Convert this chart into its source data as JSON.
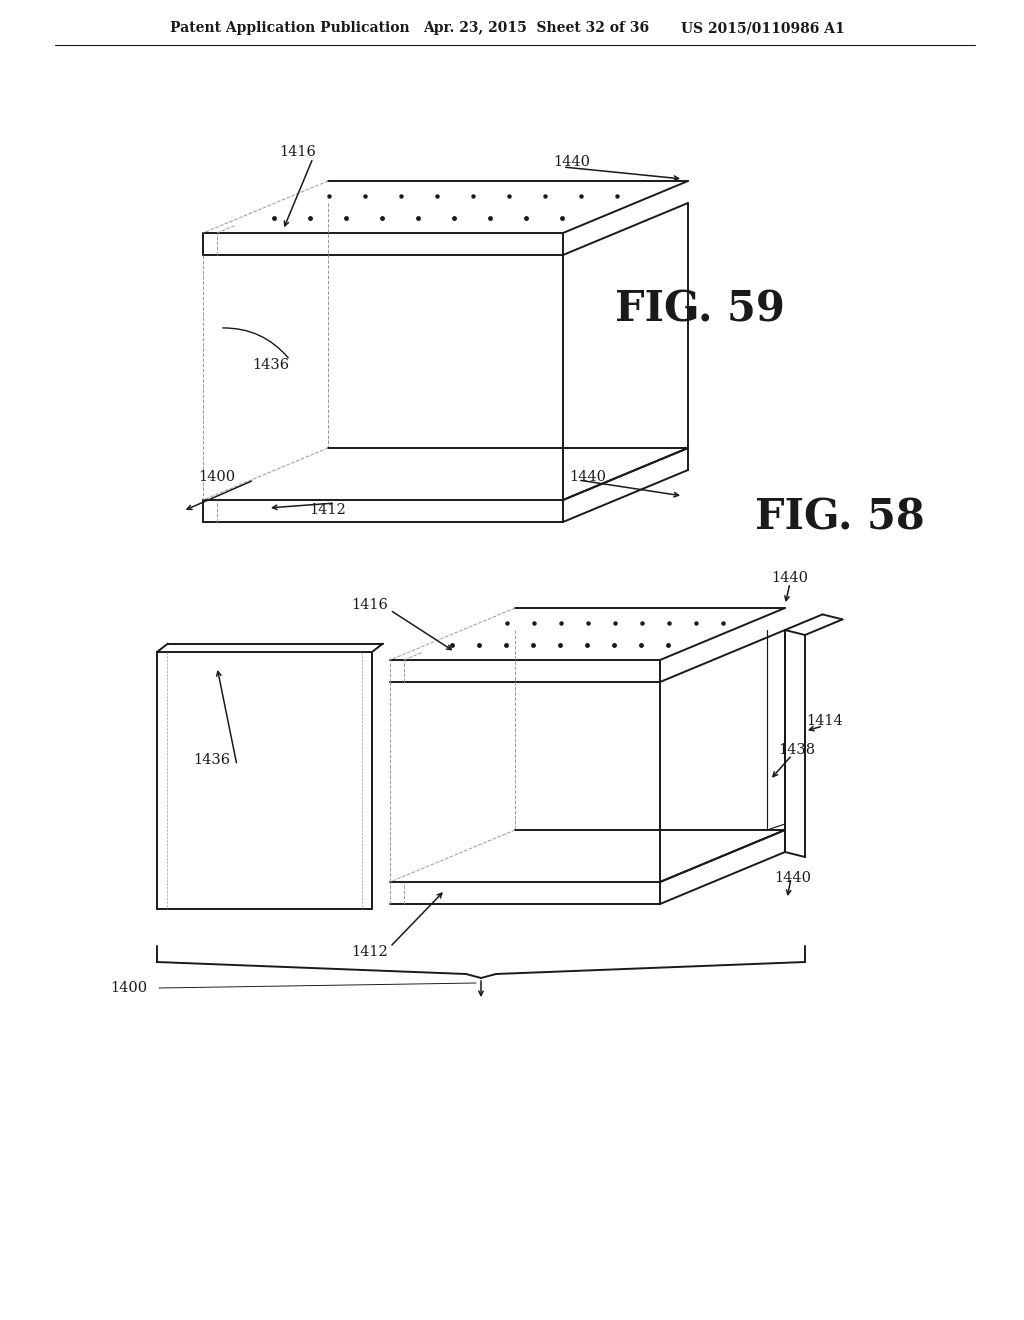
{
  "bg_color": "#ffffff",
  "lc": "#1a1a1a",
  "gc": "#999999",
  "lw": 1.4,
  "lwt": 0.85,
  "lwd": 0.7,
  "header_left": "Patent Application Publication",
  "header_mid": "Apr. 23, 2015  Sheet 32 of 36",
  "header_right": "US 2015/0110986 A1",
  "fig59": "FIG. 59",
  "fig58": "FIG. 58"
}
